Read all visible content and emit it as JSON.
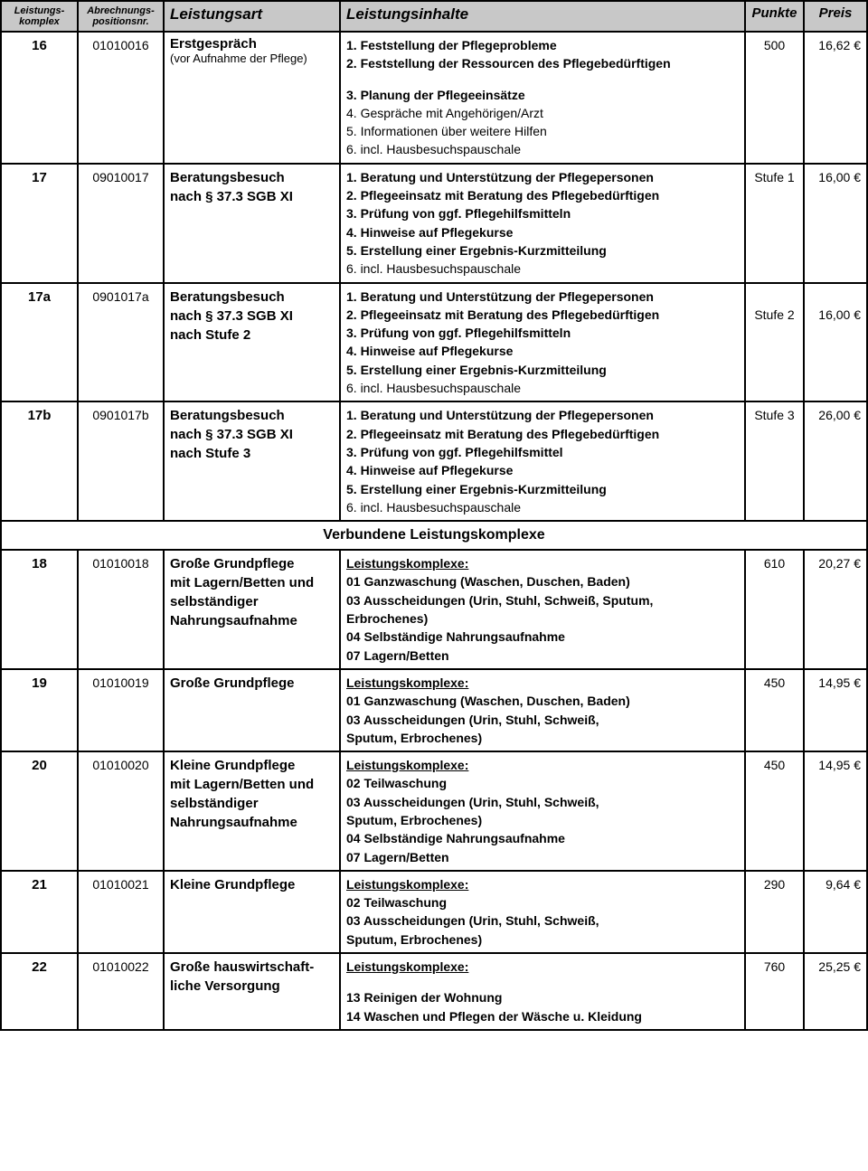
{
  "header": {
    "bg": "#c8c8c8",
    "cols": [
      "Leistungs-\nkomplex",
      "Abrechnungs-\npositionsnr.",
      "Leistungsart",
      "Leistungsinhalte",
      "Punkte",
      "Preis"
    ]
  },
  "section_title": "Verbundene Leistungskomplexe",
  "rows_top": [
    {
      "komplex": "16",
      "pos": "01010016",
      "art_main": "Erstgespräch",
      "art_sub": "(vor Aufnahme der Pflege)",
      "inhalte": [
        {
          "t": "1. Feststellung der Pflegeprobleme",
          "bold": true
        },
        {
          "t": "2. Feststellung der Ressourcen des Pflegebedürftigen",
          "bold": true
        },
        {
          "gap": true
        },
        {
          "t": "3. Planung der Pflegeeinsätze",
          "bold": true
        },
        {
          "t": "4. Gespräche mit Angehörigen/Arzt",
          "bold": false
        },
        {
          "t": "5. Informationen über weitere Hilfen",
          "bold": false
        },
        {
          "t": "6. incl. Hausbesuchspauschale",
          "bold": false
        }
      ],
      "punkte": "500",
      "preis": "16,62 €"
    },
    {
      "komplex": "17",
      "pos": "09010017",
      "art_lines": [
        "Beratungsbesuch",
        "nach § 37.3 SGB XI"
      ],
      "inhalte": [
        {
          "t": "1. Beratung und Unterstützung der Pflegepersonen",
          "bold": true
        },
        {
          "t": "2. Pflegeeinsatz mit Beratung des Pflegebedürftigen",
          "bold": true
        },
        {
          "t": "3. Prüfung von ggf. Pflegehilfsmitteln",
          "bold": true
        },
        {
          "t": "4. Hinweise auf Pflegekurse",
          "bold": true
        },
        {
          "t": "5. Erstellung einer Ergebnis-Kurzmitteilung",
          "bold": true
        },
        {
          "t": "6. incl. Hausbesuchspauschale",
          "bold": false
        }
      ],
      "punkte": "Stufe 1",
      "preis": "16,00 €"
    },
    {
      "komplex": "17a",
      "pos": "0901017a",
      "art_lines": [
        "Beratungsbesuch",
        "nach § 37.3 SGB XI",
        "nach Stufe 2"
      ],
      "inhalte": [
        {
          "t": "1. Beratung und Unterstützung der Pflegepersonen",
          "bold": true
        },
        {
          "t": "2. Pflegeeinsatz mit Beratung des Pflegebedürftigen",
          "bold": true
        },
        {
          "t": "3. Prüfung von ggf. Pflegehilfsmitteln",
          "bold": true
        },
        {
          "t": "4. Hinweise auf Pflegekurse",
          "bold": true
        },
        {
          "t": "5. Erstellung einer Ergebnis-Kurzmitteilung",
          "bold": true
        },
        {
          "t": "6. incl. Hausbesuchspauschale",
          "bold": false
        }
      ],
      "punkte": "Stufe 2",
      "preis": "16,00 €",
      "punkte_pad": true
    },
    {
      "komplex": "17b",
      "pos": "0901017b",
      "art_lines": [
        "Beratungsbesuch",
        "nach § 37.3 SGB XI",
        "nach Stufe 3"
      ],
      "inhalte": [
        {
          "t": "1. Beratung und Unterstützung der Pflegepersonen",
          "bold": true
        },
        {
          "t": "2. Pflegeeinsatz mit Beratung des Pflegebedürftigen",
          "bold": true
        },
        {
          "t": "3. Prüfung von ggf. Pflegehilfsmittel",
          "bold": true
        },
        {
          "t": "4. Hinweise auf Pflegekurse",
          "bold": true
        },
        {
          "t": "5. Erstellung einer Ergebnis-Kurzmitteilung",
          "bold": true
        },
        {
          "t": "6. incl. Hausbesuchspauschale",
          "bold": false
        }
      ],
      "punkte": "Stufe 3",
      "preis": "26,00 €"
    }
  ],
  "rows_bottom": [
    {
      "komplex": "18",
      "pos": "01010018",
      "art_lines": [
        "Große Grundpflege",
        "mit Lagern/Betten und",
        "selbständiger",
        "Nahrungsaufnahme"
      ],
      "inhalte": [
        {
          "t": "Leistungskomplexe:",
          "underline": true
        },
        {
          "t": "01  Ganzwaschung (Waschen, Duschen, Baden)",
          "bold": true
        },
        {
          "t": "03  Ausscheidungen (Urin, Stuhl, Schweiß, Sputum,",
          "bold": true
        },
        {
          "t": "Erbrochenes)",
          "bold": true
        },
        {
          "t": "04  Selbständige Nahrungsaufnahme",
          "bold": true
        },
        {
          "t": "07  Lagern/Betten",
          "bold": true
        }
      ],
      "punkte": "610",
      "preis": "20,27 €"
    },
    {
      "komplex": "19",
      "pos": "01010019",
      "art_lines": [
        "Große Grundpflege"
      ],
      "inhalte": [
        {
          "t": "Leistungskomplexe:",
          "underline": true
        },
        {
          "t": "01  Ganzwaschung (Waschen, Duschen, Baden)",
          "bold": true
        },
        {
          "t": "03  Ausscheidungen (Urin, Stuhl, Schweiß,",
          "bold": true
        },
        {
          "t": "Sputum, Erbrochenes)",
          "bold": true
        }
      ],
      "punkte": "450",
      "preis": "14,95 €"
    },
    {
      "komplex": "20",
      "pos": "01010020",
      "art_lines": [
        "Kleine Grundpflege",
        "mit Lagern/Betten und",
        "selbständiger",
        "Nahrungsaufnahme"
      ],
      "inhalte": [
        {
          "t": "Leistungskomplexe:",
          "underline": true
        },
        {
          "t": "02  Teilwaschung",
          "bold": true
        },
        {
          "t": "03  Ausscheidungen (Urin, Stuhl, Schweiß,",
          "bold": true
        },
        {
          "t": "Sputum, Erbrochenes)",
          "bold": true
        },
        {
          "t": "04  Selbständige Nahrungsaufnahme",
          "bold": true
        },
        {
          "t": "07  Lagern/Betten",
          "bold": true
        }
      ],
      "punkte": "450",
      "preis": "14,95 €"
    },
    {
      "komplex": "21",
      "pos": "01010021",
      "art_lines": [
        "Kleine Grundpflege"
      ],
      "inhalte": [
        {
          "t": "Leistungskomplexe:",
          "underline": true
        },
        {
          "t": "02  Teilwaschung",
          "bold": true
        },
        {
          "t": "03  Ausscheidungen (Urin, Stuhl, Schweiß,",
          "bold": true
        },
        {
          "t": "Sputum, Erbrochenes)",
          "bold": true
        }
      ],
      "punkte": "290",
      "preis": "9,64 €"
    },
    {
      "komplex": "22",
      "pos": "01010022",
      "art_lines": [
        "Große hauswirtschaft-",
        "liche Versorgung"
      ],
      "inhalte": [
        {
          "t": "Leistungskomplexe:",
          "underline": true
        },
        {
          "gap": true
        },
        {
          "t": "13  Reinigen der Wohnung",
          "bold": true
        },
        {
          "t": "14  Waschen und Pflegen der Wäsche u. Kleidung",
          "bold": true
        }
      ],
      "punkte": "760",
      "preis": "25,25 €"
    }
  ]
}
